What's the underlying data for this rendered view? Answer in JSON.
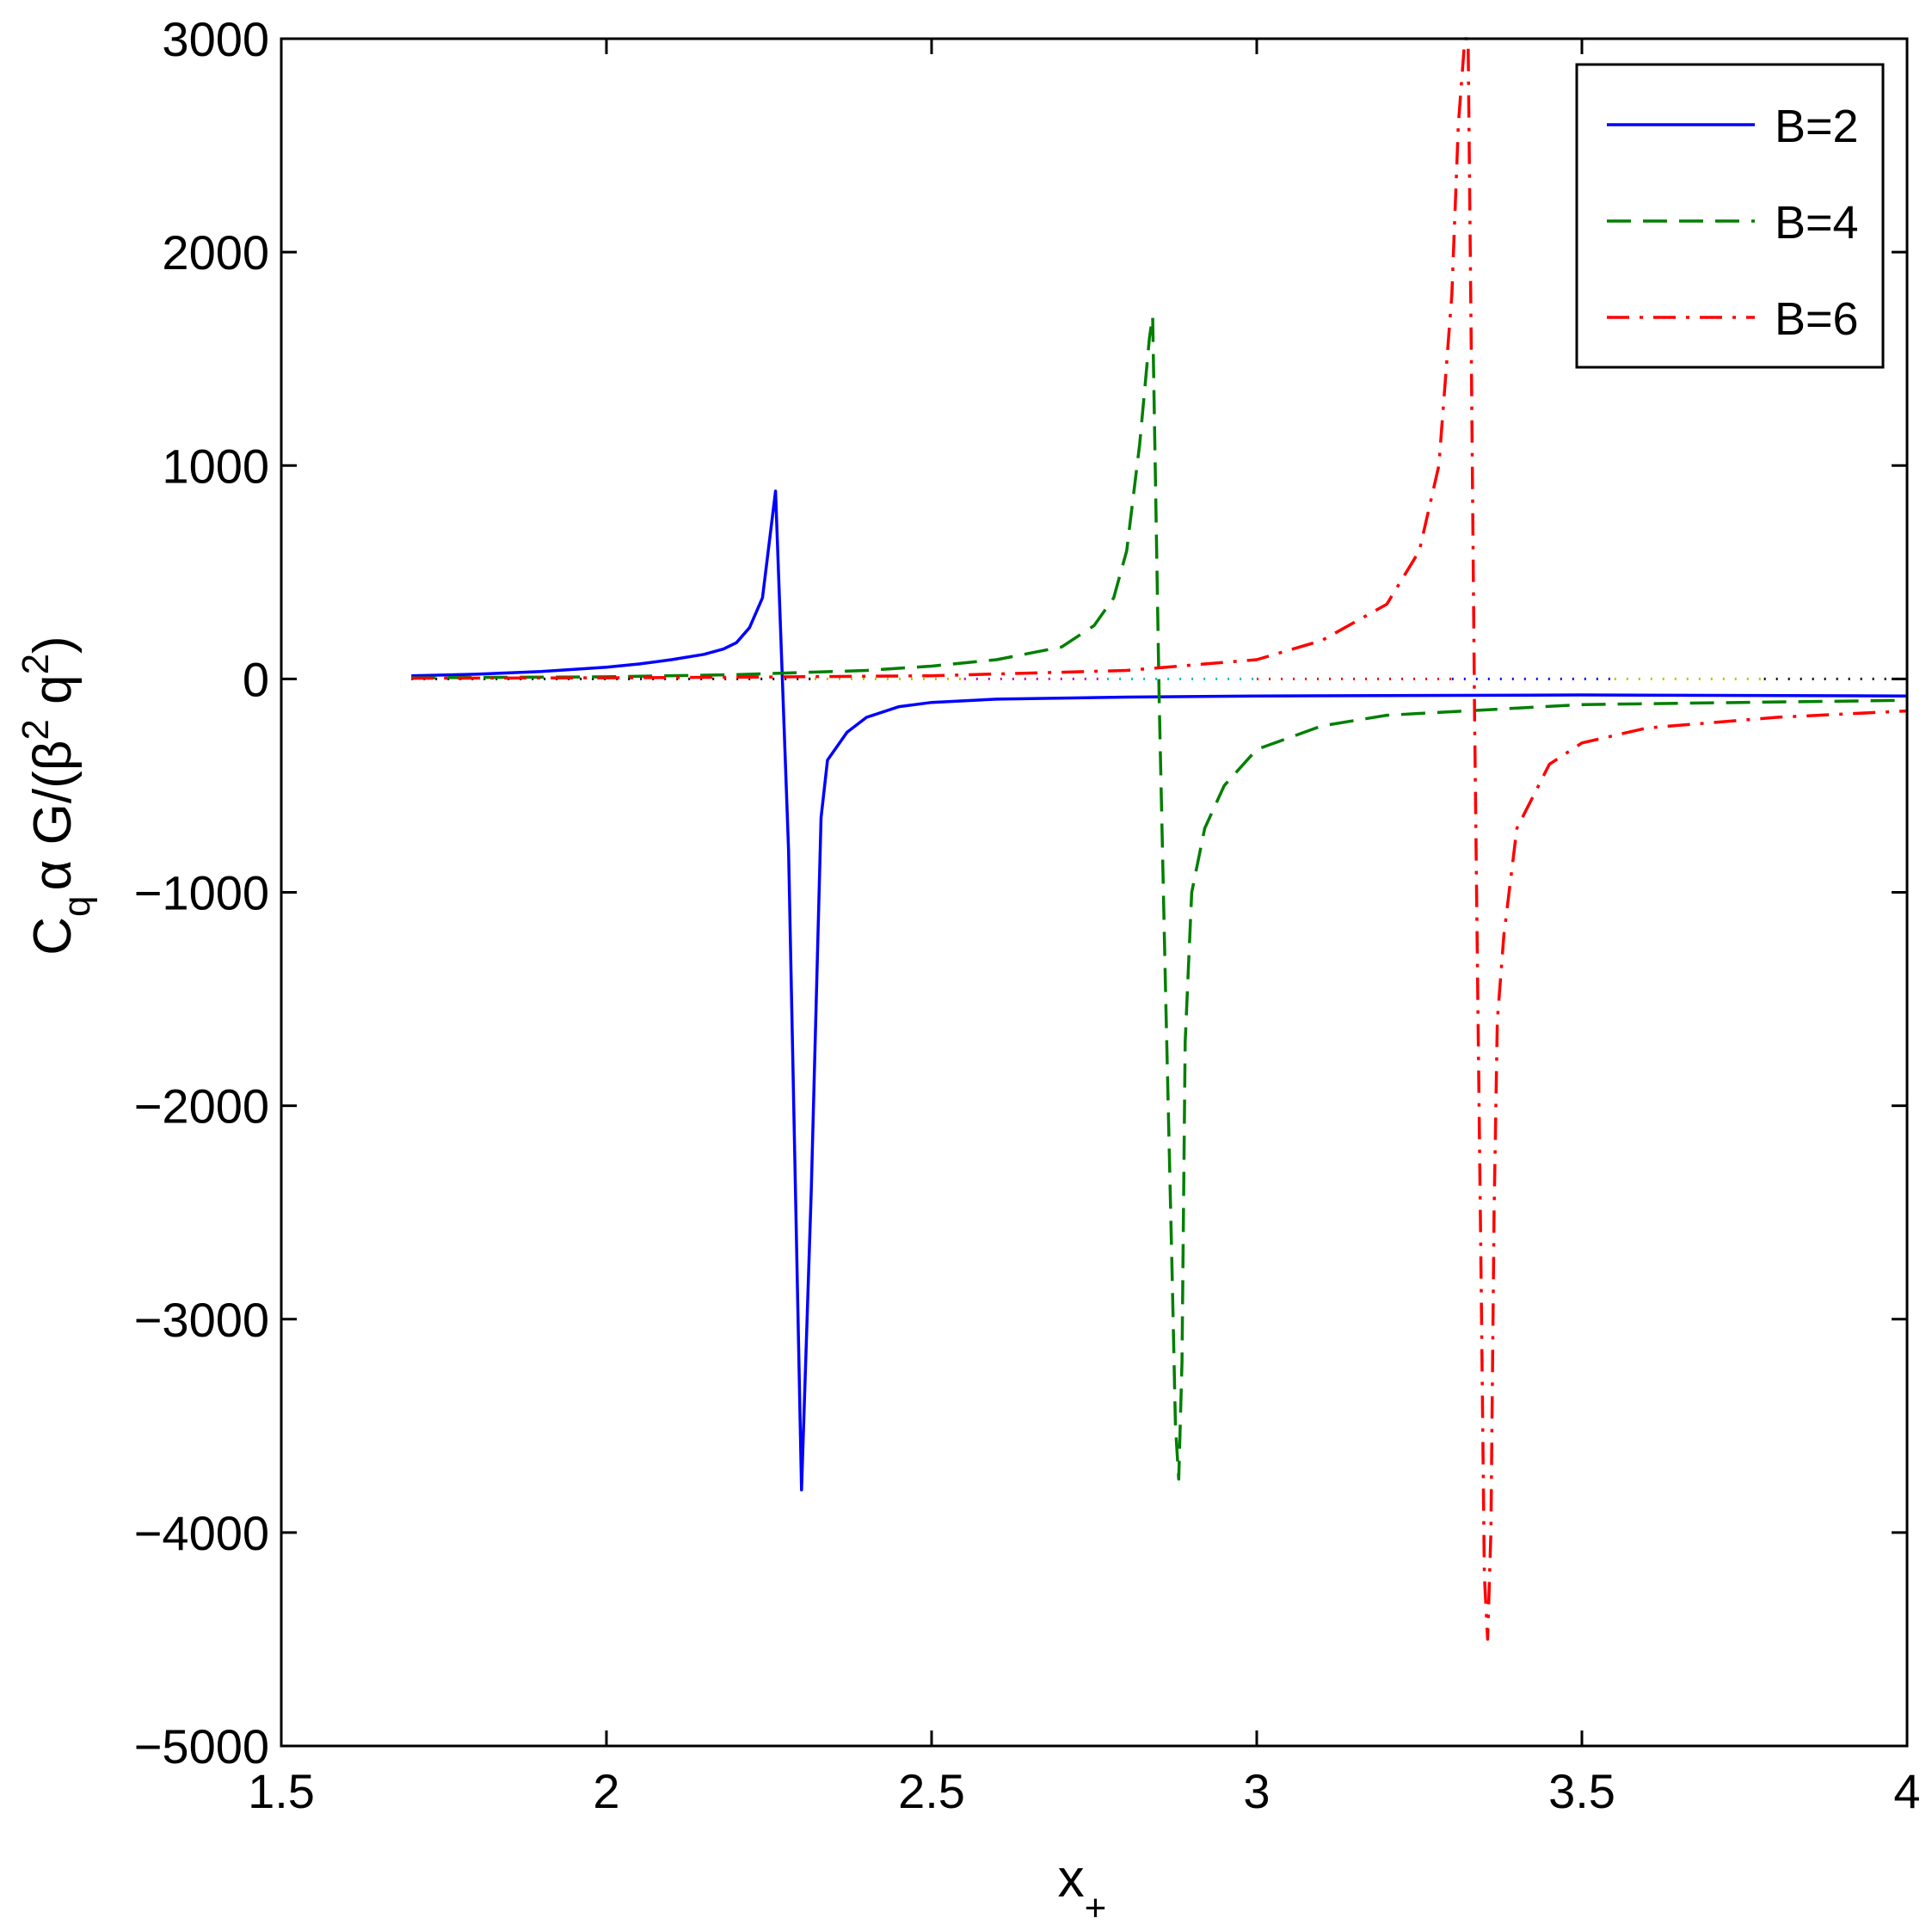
{
  "chart_data": {
    "type": "line",
    "title": "",
    "xlabel": "x_+",
    "ylabel": "C_q α G/(β² q²)",
    "xlabel_parts": {
      "base": "x",
      "sub": "+"
    },
    "ylabel_parts": {
      "c": "C",
      "q_sub": "q",
      "mid": "α G/(β",
      "sup1": "2",
      "q2": " q",
      "sup2": "2",
      "end": ")"
    },
    "xlim": [
      1.5,
      4
    ],
    "ylim": [
      -5000,
      3000
    ],
    "xticks": [
      1.5,
      2,
      2.5,
      3,
      3.5,
      4
    ],
    "xtick_labels": [
      "1.5",
      "2",
      "2.5",
      "3",
      "3.5",
      "4"
    ],
    "yticks": [
      3000,
      2000,
      1000,
      0,
      -1000,
      -2000,
      -3000,
      -4000,
      -5000
    ],
    "ytick_labels": [
      "3000",
      "2000",
      "1000",
      "0",
      "−1000",
      "−2000",
      "−3000",
      "−4000",
      "−5000"
    ],
    "grid": false,
    "legend_position": "top-right",
    "zero_reference_line": {
      "style": "dotted",
      "x_range": [
        1.7,
        4
      ]
    },
    "series": [
      {
        "name": "B=2",
        "color": "#0000ff",
        "style": "solid",
        "x": [
          1.7,
          1.8,
          1.9,
          2.0,
          2.05,
          2.1,
          2.15,
          2.18,
          2.2,
          2.22,
          2.24,
          2.26,
          2.28,
          2.3,
          2.315,
          2.33,
          2.34,
          2.37,
          2.4,
          2.45,
          2.5,
          2.6,
          2.8,
          3.0,
          3.5,
          4.0
        ],
        "y": [
          15,
          22,
          35,
          55,
          70,
          90,
          115,
          140,
          170,
          240,
          380,
          880,
          -800,
          -3800,
          -2400,
          -650,
          -380,
          -250,
          -180,
          -130,
          -110,
          -95,
          -85,
          -80,
          -75,
          -80
        ]
      },
      {
        "name": "B=4",
        "color": "#007f00",
        "style": "dashed",
        "x": [
          1.7,
          2.0,
          2.2,
          2.4,
          2.5,
          2.6,
          2.7,
          2.75,
          2.78,
          2.8,
          2.82,
          2.835,
          2.84,
          2.845,
          2.85,
          2.86,
          2.87,
          2.875,
          2.88,
          2.885,
          2.89,
          2.9,
          2.92,
          2.95,
          3.0,
          3.1,
          3.2,
          3.5,
          4.0
        ],
        "y": [
          5,
          10,
          20,
          40,
          60,
          90,
          150,
          250,
          380,
          600,
          1100,
          1600,
          1700,
          800,
          -100,
          -1500,
          -2800,
          -3500,
          -3750,
          -3200,
          -1700,
          -1000,
          -700,
          -500,
          -330,
          -220,
          -170,
          -120,
          -100
        ]
      },
      {
        "name": "B=6",
        "color": "#ff0000",
        "style": "dashdot",
        "x": [
          1.7,
          2.0,
          2.2,
          2.5,
          2.8,
          3.0,
          3.1,
          3.2,
          3.25,
          3.28,
          3.3,
          3.31,
          3.32,
          3.325,
          3.33,
          3.335,
          3.34,
          3.345,
          3.35,
          3.355,
          3.36,
          3.365,
          3.37,
          3.38,
          3.4,
          3.45,
          3.5,
          3.6,
          3.8,
          4.0
        ],
        "y": [
          3,
          5,
          8,
          15,
          40,
          90,
          180,
          350,
          600,
          1000,
          1800,
          2600,
          3000,
          3000,
          1500,
          -200,
          -1500,
          -2800,
          -4200,
          -4500,
          -4000,
          -2500,
          -1600,
          -1200,
          -700,
          -400,
          -300,
          -230,
          -180,
          -150
        ]
      }
    ],
    "zero_line_segments": [
      {
        "x0": 2.32,
        "x1": 2.55,
        "color": "#bfbf00"
      },
      {
        "x0": 2.55,
        "x1": 2.77,
        "color": "#bf00bf"
      },
      {
        "x0": 2.77,
        "x1": 3.0,
        "color": "#00bfbf"
      },
      {
        "x0": 3.0,
        "x1": 3.3,
        "color": "#ff0000"
      },
      {
        "x0": 3.3,
        "x1": 3.55,
        "color": "#0000ff"
      },
      {
        "x0": 3.55,
        "x1": 3.78,
        "color": "#bfbf00"
      },
      {
        "x0": 3.78,
        "x1": 4.0,
        "color": "#000000"
      }
    ]
  }
}
